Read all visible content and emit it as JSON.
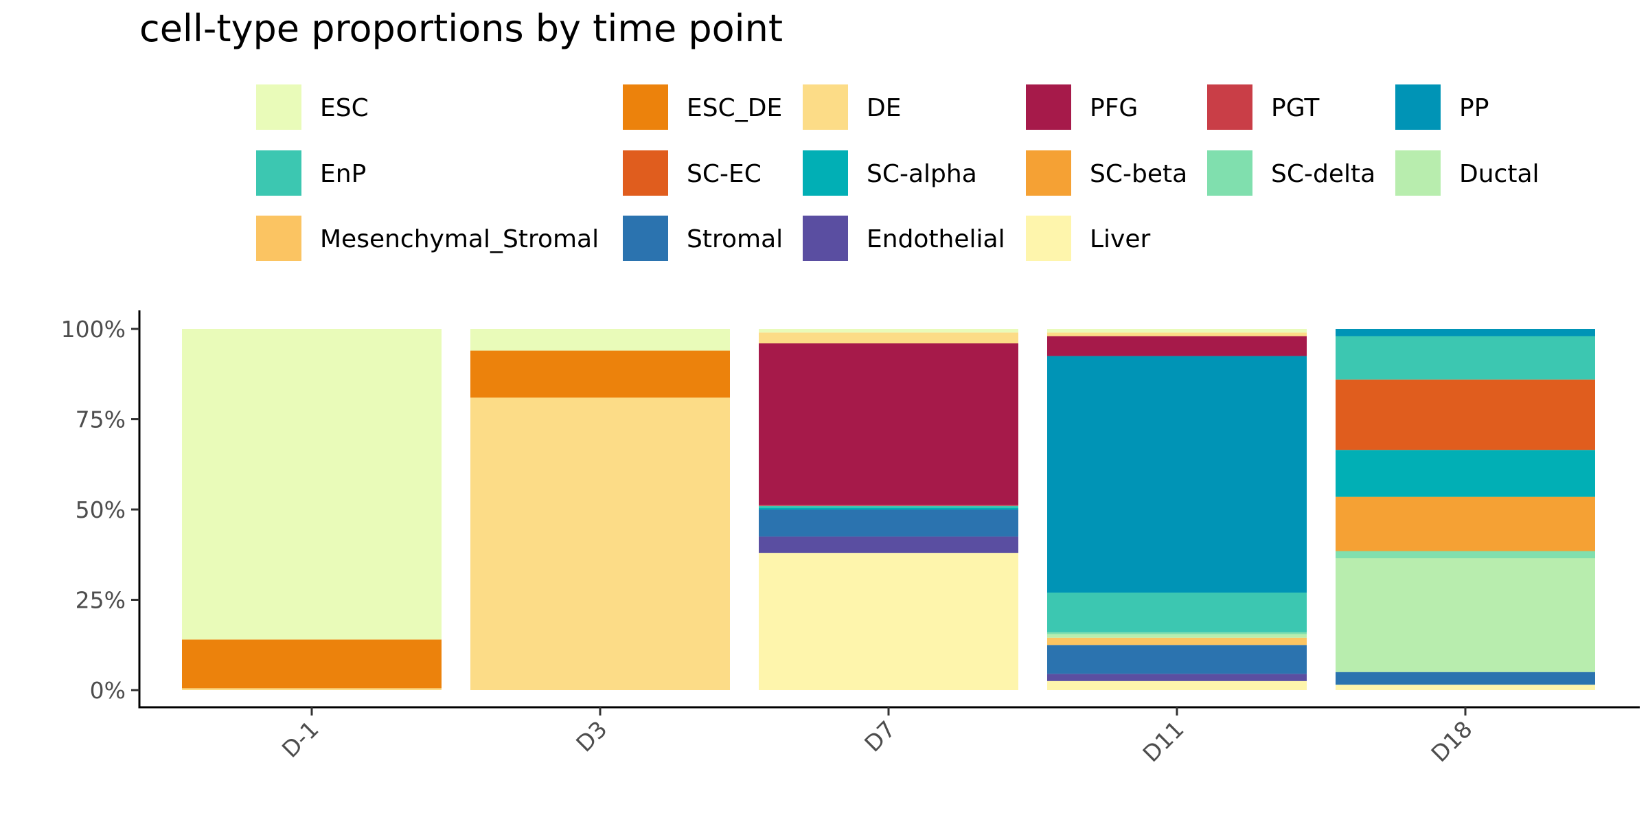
{
  "chart_data": {
    "type": "bar",
    "stacked": true,
    "title": "cell-type proportions by time point",
    "xlabel": "",
    "ylabel": "",
    "ylim": [
      0,
      1
    ],
    "y_ticks": [
      "0%",
      "25%",
      "50%",
      "75%",
      "100%"
    ],
    "categories": [
      "D-1",
      "D3",
      "D7",
      "D11",
      "D18"
    ],
    "legend_position": "top",
    "series": [
      {
        "name": "Liver",
        "color": "#FEF5AC",
        "values": [
          0.0,
          0.0,
          0.38,
          0.025,
          0.015
        ]
      },
      {
        "name": "Endothelial",
        "color": "#5A4EA1",
        "values": [
          0.0,
          0.0,
          0.045,
          0.02,
          0.0
        ]
      },
      {
        "name": "Stromal",
        "color": "#2B73AF",
        "values": [
          0.0,
          0.0,
          0.075,
          0.08,
          0.035
        ]
      },
      {
        "name": "Mesenchymal_Stromal",
        "color": "#FBC462",
        "values": [
          0.0,
          0.0,
          0.0,
          0.02,
          0.0
        ]
      },
      {
        "name": "Ductal",
        "color": "#B8EDAE",
        "values": [
          0.0,
          0.0,
          0.0,
          0.01,
          0.315
        ]
      },
      {
        "name": "SC-delta",
        "color": "#80DFAE",
        "values": [
          0.0,
          0.0,
          0.0,
          0.005,
          0.02
        ]
      },
      {
        "name": "SC-beta",
        "color": "#F5A134",
        "values": [
          0.0,
          0.0,
          0.0,
          0.0,
          0.15
        ]
      },
      {
        "name": "SC-alpha",
        "color": "#01AFB5",
        "values": [
          0.0,
          0.0,
          0.005,
          0.0,
          0.13
        ]
      },
      {
        "name": "SC-EC",
        "color": "#E05D1E",
        "values": [
          0.0,
          0.0,
          0.0,
          0.0,
          0.195
        ]
      },
      {
        "name": "EnP",
        "color": "#3CC7B1",
        "values": [
          0.0,
          0.0,
          0.005,
          0.11,
          0.12
        ]
      },
      {
        "name": "PP",
        "color": "#0094B6",
        "values": [
          0.0,
          0.0,
          0.0,
          0.655,
          0.02
        ]
      },
      {
        "name": "PGT",
        "color": "#C93E47",
        "values": [
          0.0,
          0.0,
          0.002,
          0.0,
          0.0
        ]
      },
      {
        "name": "PFG",
        "color": "#A61A4A",
        "values": [
          0.0,
          0.0,
          0.448,
          0.055,
          0.0
        ]
      },
      {
        "name": "DE",
        "color": "#FCDC87",
        "values": [
          0.005,
          0.81,
          0.03,
          0.01,
          0.0
        ]
      },
      {
        "name": "ESC_DE",
        "color": "#EC820C",
        "values": [
          0.135,
          0.13,
          0.0,
          0.0,
          0.0
        ]
      },
      {
        "name": "ESC",
        "color": "#E9FBB9",
        "values": [
          0.86,
          0.06,
          0.01,
          0.01,
          0.0
        ]
      }
    ],
    "legend": [
      {
        "label": "ESC",
        "color": "#E9FBB9"
      },
      {
        "label": "ESC_DE",
        "color": "#EC820C"
      },
      {
        "label": "DE",
        "color": "#FCDC87"
      },
      {
        "label": "PFG",
        "color": "#A61A4A"
      },
      {
        "label": "PGT",
        "color": "#C93E47"
      },
      {
        "label": "PP",
        "color": "#0094B6"
      },
      {
        "label": "EnP",
        "color": "#3CC7B1"
      },
      {
        "label": "SC-EC",
        "color": "#E05D1E"
      },
      {
        "label": "SC-alpha",
        "color": "#01AFB5"
      },
      {
        "label": "SC-beta",
        "color": "#F5A134"
      },
      {
        "label": "SC-delta",
        "color": "#80DFAE"
      },
      {
        "label": "Ductal",
        "color": "#B8EDAE"
      },
      {
        "label": "Mesenchymal_Stromal",
        "color": "#FBC462"
      },
      {
        "label": "Stromal",
        "color": "#2B73AF"
      },
      {
        "label": "Endothelial",
        "color": "#5A4EA1"
      },
      {
        "label": "Liver",
        "color": "#FEF5AC"
      }
    ]
  }
}
